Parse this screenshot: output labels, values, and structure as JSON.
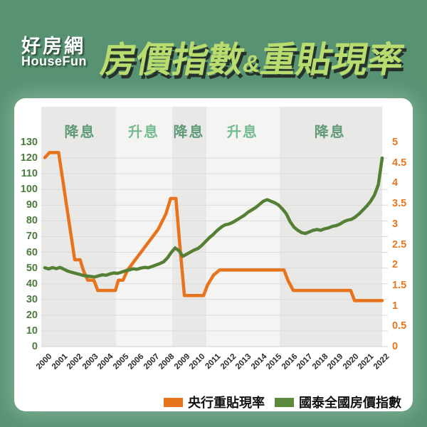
{
  "header": {
    "logo_line1": "好房網",
    "logo_line2": "HouseFun",
    "title_part1": "房價指數",
    "title_amp": "&",
    "title_part2": "重貼現率"
  },
  "colors": {
    "background_green": "#579273",
    "title_green": "#b9dc6e",
    "rate_orange": "#e8731d",
    "index_green": "#557f35",
    "legend_green": "#5b8a3d",
    "cut_band": "#e8e8e7",
    "hike_band": "#f4f4f2",
    "cut_label": "#5f9a78",
    "hike_label": "#74bb90",
    "left_axis_text": "#4d7a3e",
    "right_axis_text": "#e8761e",
    "gridline": "#dadada"
  },
  "chart_data": {
    "type": "line",
    "title": "房價指數&重貼現率",
    "left_axis": {
      "min": 0,
      "max": 130,
      "step": 10,
      "ticks": [
        "130",
        "120",
        "110",
        "100",
        "90",
        "80",
        "70",
        "60",
        "50",
        "40",
        "30",
        "20",
        "10",
        "0"
      ]
    },
    "right_axis": {
      "min": 0,
      "max": 5,
      "step": 0.5,
      "ticks": [
        "5",
        "4.5",
        "4",
        "3.5",
        "3",
        "2.5",
        "2",
        "1.5",
        "1",
        "0.5",
        "0"
      ]
    },
    "x_axis": {
      "min": 2000,
      "max": 2022,
      "ticks": [
        "2000",
        "2001",
        "2002",
        "2003",
        "2004",
        "2005",
        "2006",
        "2007",
        "2008",
        "2009",
        "2010",
        "2011",
        "2012",
        "2013",
        "2014",
        "2015",
        "2016",
        "2017",
        "2018",
        "2019",
        "2020",
        "2021",
        "2022"
      ]
    },
    "bands": [
      {
        "label": "降息",
        "kind": "cut",
        "from_year": 1999.77,
        "to_year": 2004.64,
        "label_year": 2002.3
      },
      {
        "label": "升息",
        "kind": "hike",
        "from_year": 2004.64,
        "to_year": 2008.31,
        "label_year": 2006.45
      },
      {
        "label": "降息",
        "kind": "cut",
        "from_year": 2008.31,
        "to_year": 2010.54,
        "label_year": 2009.4
      },
      {
        "label": "升息",
        "kind": "hike",
        "from_year": 2010.54,
        "to_year": 2015.32,
        "label_year": 2012.9
      },
      {
        "label": "降息",
        "kind": "cut",
        "from_year": 2015.32,
        "to_year": 2022.0,
        "label_year": 2018.6
      }
    ],
    "series": [
      {
        "name": "央行重貼現率",
        "axis": "right",
        "color": "#e8731d",
        "x": [
          2000.0,
          2000.3,
          2000.9,
          2001.1,
          2001.3,
          2001.5,
          2001.7,
          2001.95,
          2002.3,
          2002.5,
          2002.8,
          2003.2,
          2003.45,
          2004.6,
          2004.8,
          2005.1,
          2005.4,
          2005.9,
          2006.4,
          2006.9,
          2007.4,
          2007.9,
          2008.2,
          2008.55,
          2008.8,
          2009.1,
          2010.35,
          2010.6,
          2011.0,
          2011.4,
          2015.6,
          2015.85,
          2016.2,
          2019.95,
          2020.2,
          2022.0
        ],
        "values": [
          4.625,
          4.75,
          4.75,
          4.25,
          3.75,
          3.25,
          2.75,
          2.125,
          2.125,
          1.875,
          1.625,
          1.625,
          1.375,
          1.375,
          1.625,
          1.625,
          1.875,
          2.125,
          2.375,
          2.625,
          2.875,
          3.25,
          3.625,
          3.625,
          2.5,
          1.25,
          1.25,
          1.5,
          1.75,
          1.875,
          1.875,
          1.625,
          1.375,
          1.375,
          1.125,
          1.125
        ]
      },
      {
        "name": "國泰全國房價指數",
        "axis": "left",
        "color": "#557f35",
        "x_start": 2000.0,
        "x_step": 0.25,
        "values": [
          50.2,
          49.4,
          50.3,
          49.6,
          50.4,
          49.2,
          48.0,
          47.3,
          46.6,
          46.0,
          45.3,
          44.9,
          44.6,
          44.3,
          45.0,
          45.7,
          45.4,
          46.3,
          46.9,
          46.6,
          47.4,
          48.2,
          48.8,
          49.5,
          49.2,
          49.9,
          50.4,
          50.2,
          51.0,
          51.9,
          52.8,
          54.0,
          56.5,
          60.0,
          62.8,
          61.0,
          57.5,
          58.8,
          60.2,
          61.5,
          62.5,
          64.5,
          67.0,
          69.5,
          71.5,
          74.0,
          76.0,
          77.5,
          78.0,
          79.0,
          80.5,
          82.0,
          83.5,
          85.5,
          87.0,
          88.5,
          90.5,
          92.5,
          93.5,
          92.5,
          91.5,
          90.0,
          87.5,
          84.5,
          79.5,
          76.0,
          74.0,
          72.5,
          72.0,
          73.0,
          74.0,
          74.5,
          74.0,
          75.0,
          75.5,
          76.5,
          77.0,
          78.0,
          79.5,
          80.5,
          81.0,
          82.5,
          84.5,
          87.0,
          89.5,
          92.5,
          96.5,
          103.0,
          120.0
        ]
      }
    ]
  },
  "legend": {
    "items": [
      {
        "label": "央行重貼現率",
        "color": "#e8731d"
      },
      {
        "label": "國泰全國房價指數",
        "color": "#5b8a3d"
      }
    ]
  }
}
